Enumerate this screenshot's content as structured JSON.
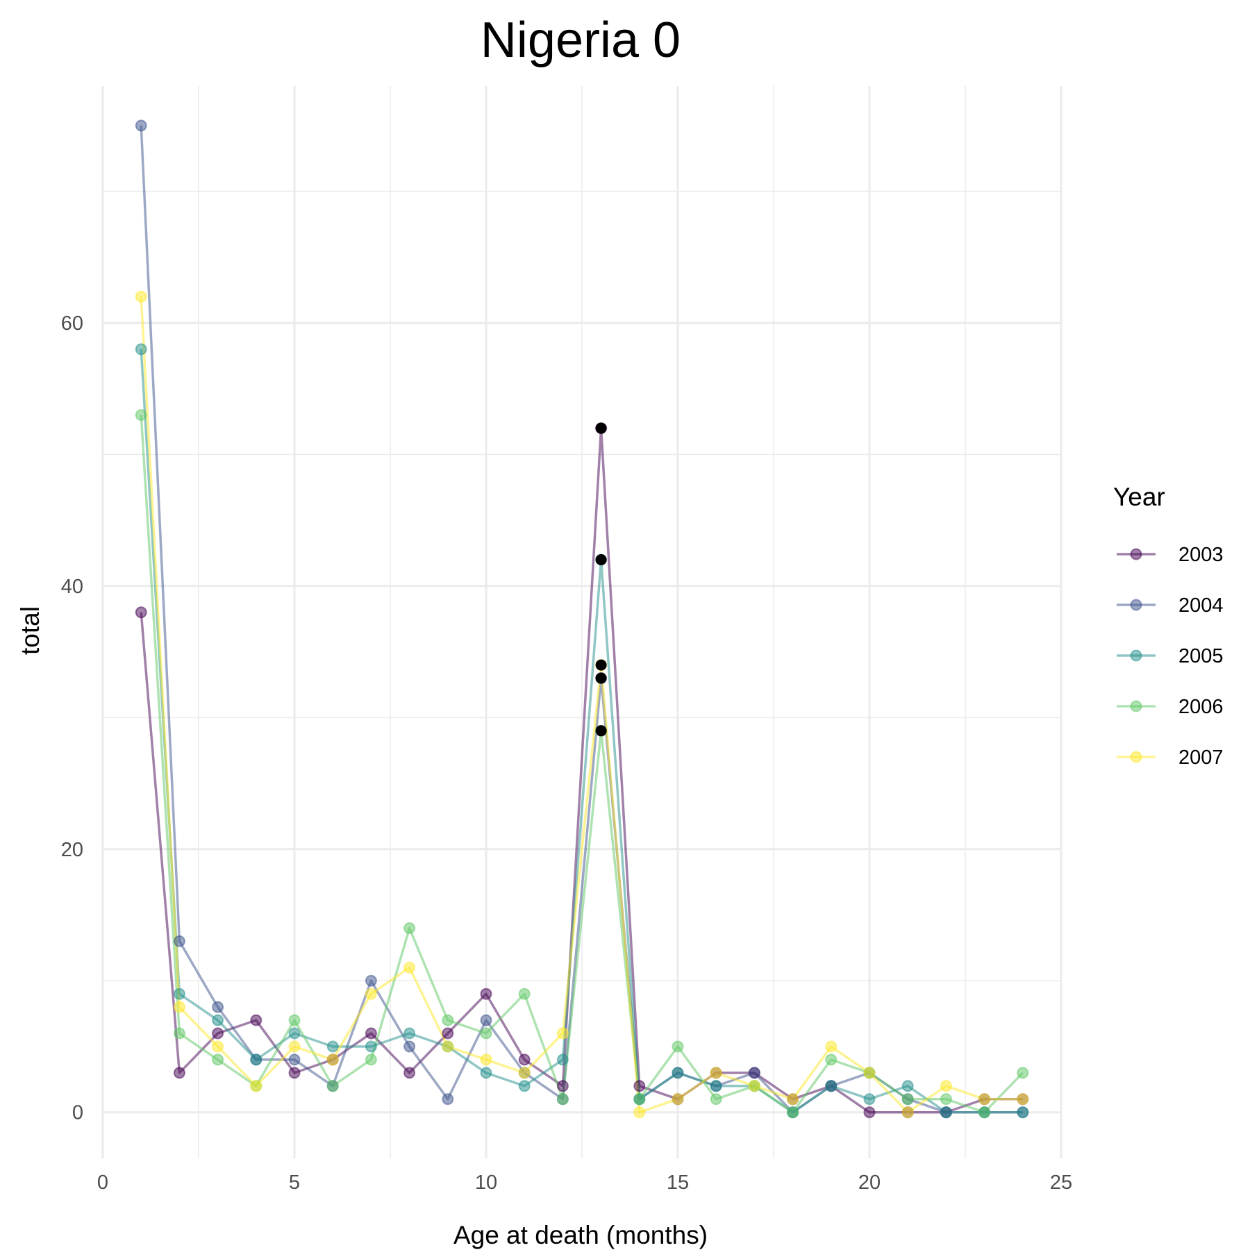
{
  "chart_data": {
    "type": "line",
    "title": "Nigeria 0",
    "xlabel": "Age at death (months)",
    "ylabel": "total",
    "xlim": [
      0,
      25
    ],
    "ylim": [
      -3.5,
      78
    ],
    "x_ticks": [
      0,
      5,
      10,
      15,
      20,
      25
    ],
    "y_ticks": [
      0,
      20,
      40,
      60
    ],
    "grid": true,
    "legend": {
      "title": "Year",
      "position": "right"
    },
    "x": [
      1,
      2,
      3,
      4,
      5,
      6,
      7,
      8,
      9,
      10,
      11,
      12,
      13,
      14,
      15,
      16,
      17,
      18,
      19,
      20,
      21,
      22,
      23,
      24
    ],
    "series": [
      {
        "name": "2003",
        "color": "#440154",
        "values": [
          38,
          3,
          6,
          7,
          3,
          4,
          6,
          3,
          6,
          9,
          4,
          2,
          52,
          2,
          1,
          3,
          3,
          1,
          2,
          0,
          0,
          0,
          1,
          1
        ]
      },
      {
        "name": "2004",
        "color": "#3B528B",
        "values": [
          75,
          13,
          8,
          4,
          4,
          2,
          10,
          5,
          1,
          7,
          3,
          1,
          33,
          1,
          3,
          2,
          3,
          0,
          2,
          3,
          1,
          0,
          0,
          0
        ]
      },
      {
        "name": "2005",
        "color": "#21908C",
        "values": [
          58,
          9,
          7,
          4,
          6,
          5,
          5,
          6,
          5,
          3,
          2,
          4,
          42,
          1,
          3,
          2,
          2,
          0,
          2,
          1,
          2,
          0,
          0,
          0
        ]
      },
      {
        "name": "2006",
        "color": "#5DC863",
        "values": [
          53,
          6,
          4,
          2,
          7,
          2,
          4,
          14,
          7,
          6,
          9,
          1,
          29,
          1,
          5,
          1,
          2,
          0,
          4,
          3,
          1,
          1,
          0,
          3
        ]
      },
      {
        "name": "2007",
        "color": "#FDE725",
        "values": [
          62,
          8,
          5,
          2,
          5,
          4,
          9,
          11,
          5,
          4,
          3,
          6,
          34,
          0,
          1,
          3,
          2,
          1,
          5,
          3,
          0,
          2,
          1,
          1
        ]
      }
    ],
    "highlight_x": 13
  }
}
